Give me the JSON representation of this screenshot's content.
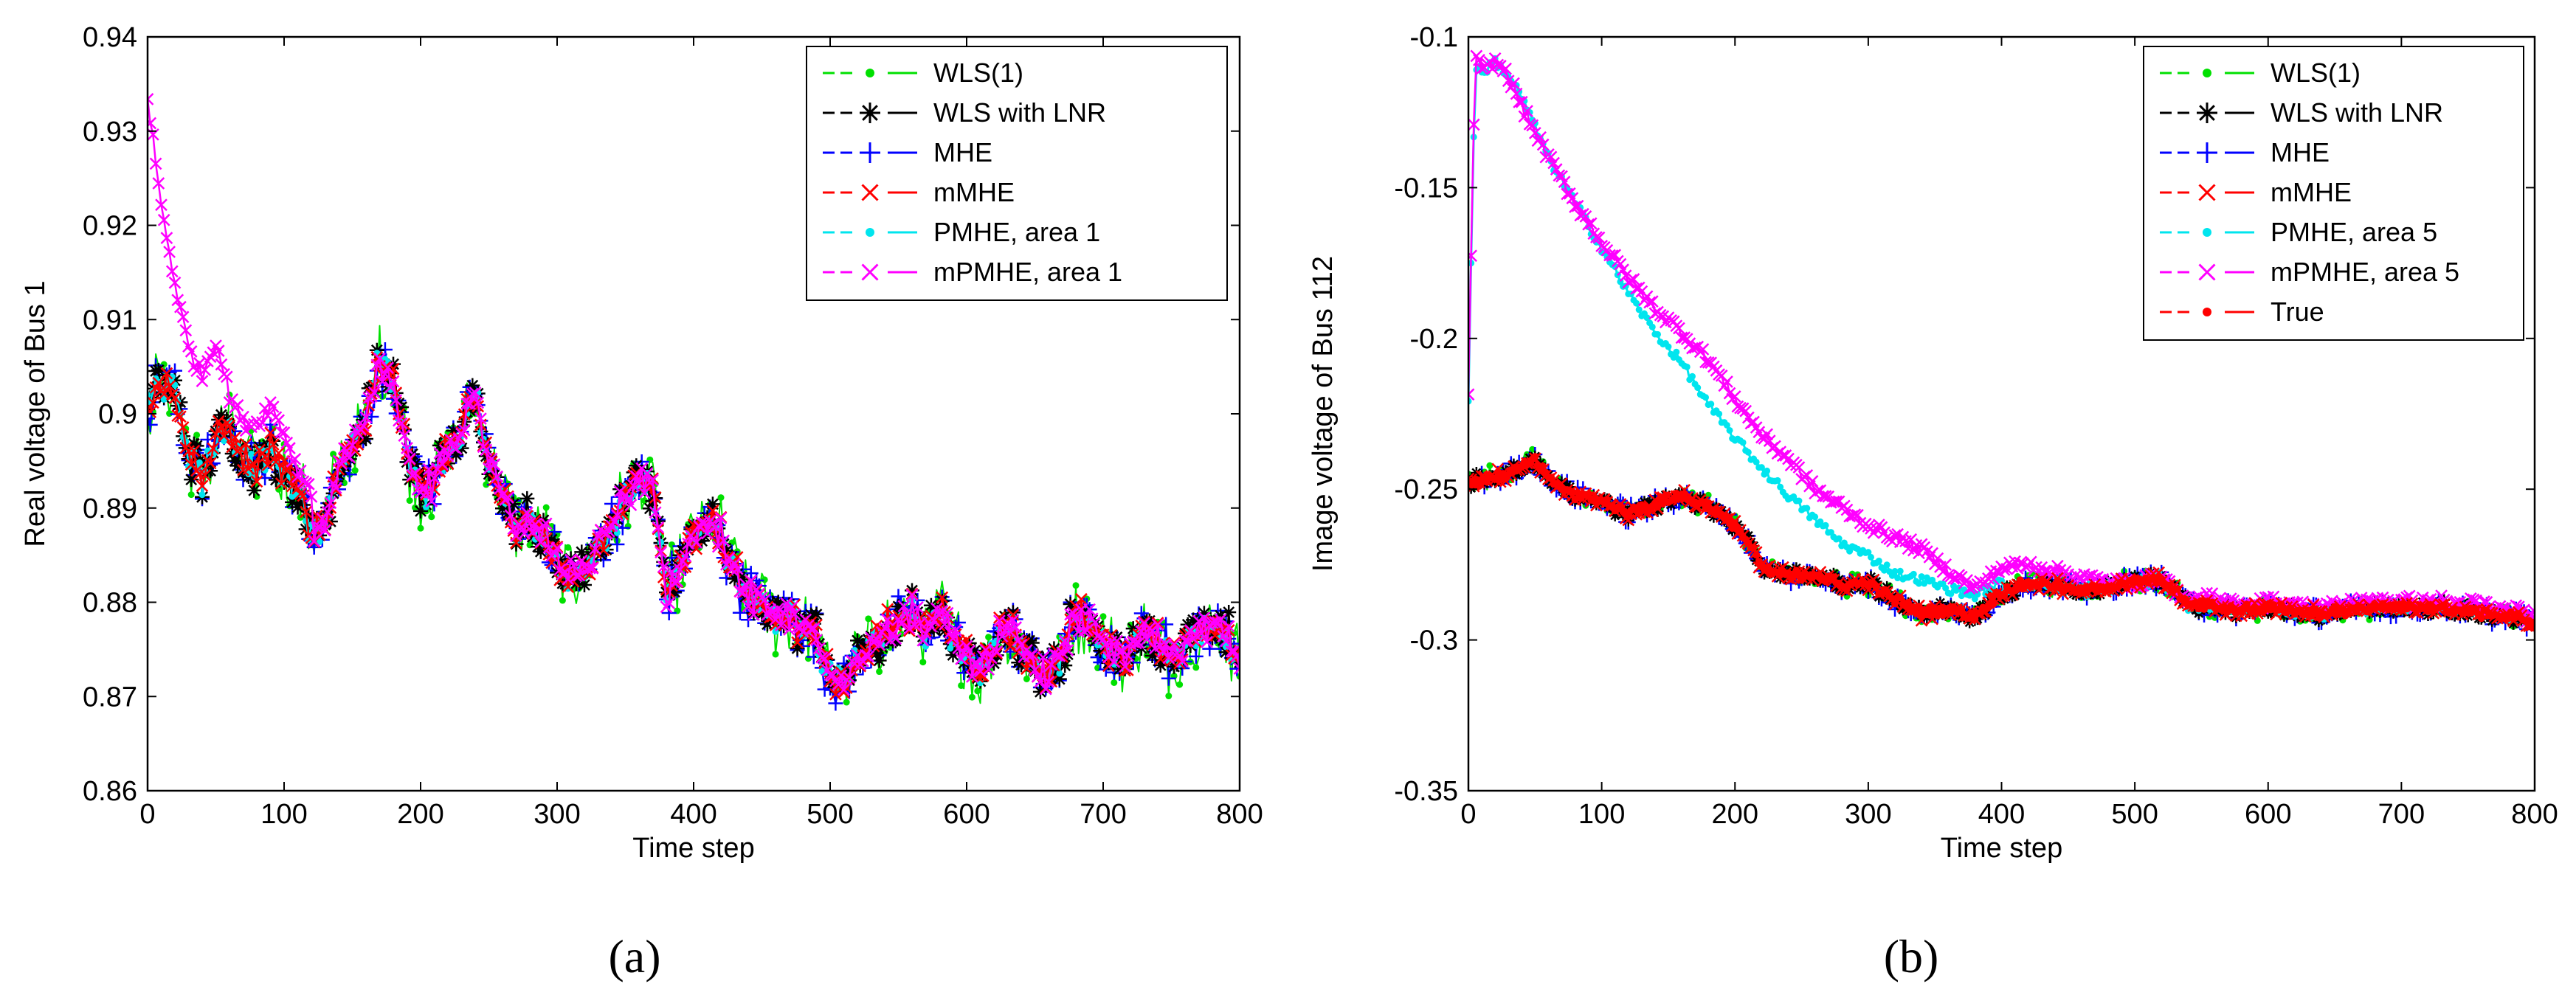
{
  "chart_data": [
    {
      "type": "line",
      "caption": "a",
      "xlabel": "Time step",
      "ylabel": "Real voltage of Bus 1",
      "xlim": [
        0,
        800
      ],
      "ylim": [
        0.86,
        0.94
      ],
      "xticks": [
        "0",
        "100",
        "200",
        "300",
        "400",
        "500",
        "600",
        "700",
        "800"
      ],
      "yticks": [
        "0.86",
        "0.87",
        "0.88",
        "0.89",
        "0.9",
        "0.91",
        "0.92",
        "0.93",
        "0.94"
      ],
      "grid": false,
      "legend_position": "top-right",
      "base_trend": {
        "x": [
          0,
          10,
          20,
          30,
          40,
          50,
          60,
          70,
          80,
          90,
          100,
          110,
          120,
          130,
          140,
          150,
          160,
          170,
          180,
          190,
          200,
          210,
          220,
          230,
          240,
          250,
          260,
          270,
          280,
          290,
          300,
          310,
          320,
          330,
          340,
          350,
          360,
          370,
          380,
          390,
          400,
          410,
          420,
          430,
          440,
          450,
          460,
          470,
          480,
          490,
          500,
          510,
          520,
          530,
          540,
          550,
          560,
          570,
          580,
          590,
          600,
          610,
          620,
          630,
          640,
          650,
          660,
          670,
          680,
          690,
          700,
          710,
          720,
          730,
          740,
          750,
          760,
          770,
          780,
          790,
          800
        ],
        "y": [
          0.901,
          0.903,
          0.902,
          0.896,
          0.893,
          0.897,
          0.899,
          0.895,
          0.894,
          0.896,
          0.894,
          0.892,
          0.888,
          0.889,
          0.894,
          0.897,
          0.899,
          0.906,
          0.903,
          0.896,
          0.891,
          0.893,
          0.896,
          0.898,
          0.902,
          0.895,
          0.891,
          0.888,
          0.889,
          0.887,
          0.884,
          0.883,
          0.884,
          0.886,
          0.888,
          0.891,
          0.893,
          0.892,
          0.881,
          0.884,
          0.887,
          0.888,
          0.887,
          0.883,
          0.881,
          0.879,
          0.878,
          0.879,
          0.877,
          0.876,
          0.872,
          0.871,
          0.874,
          0.876,
          0.877,
          0.878,
          0.879,
          0.877,
          0.879,
          0.876,
          0.874,
          0.872,
          0.876,
          0.878,
          0.874,
          0.873,
          0.872,
          0.875,
          0.879,
          0.877,
          0.876,
          0.874,
          0.875,
          0.878,
          0.876,
          0.874,
          0.876,
          0.877,
          0.878,
          0.877,
          0.873
        ]
      },
      "series": [
        {
          "name": "WLS(1)",
          "color": "#00e000",
          "marker": "dot"
        },
        {
          "name": "WLS with LNR",
          "color": "#000000",
          "marker": "star"
        },
        {
          "name": "MHE",
          "color": "#0000ff",
          "marker": "plus"
        },
        {
          "name": "mMHE",
          "color": "#ff0000",
          "marker": "x"
        },
        {
          "name": "PMHE, area 1",
          "color": "#00e5ee",
          "marker": "dot"
        },
        {
          "name": "mPMHE, area 1",
          "color": "#ff00ff",
          "marker": "x",
          "start_x": [
            0,
            5,
            10,
            20,
            30,
            40,
            50,
            60,
            70,
            80,
            90,
            100,
            110,
            120
          ],
          "start_y": [
            0.933,
            0.928,
            0.922,
            0.914,
            0.907,
            0.904,
            0.908,
            0.902,
            0.899,
            0.899,
            0.901,
            0.898,
            0.894,
            0.892
          ]
        }
      ]
    },
    {
      "type": "line",
      "caption": "b",
      "xlabel": "Time step",
      "ylabel": "Image voltage of Bus 112",
      "xlim": [
        0,
        800
      ],
      "ylim": [
        -0.35,
        -0.1
      ],
      "xticks": [
        "0",
        "100",
        "200",
        "300",
        "400",
        "500",
        "600",
        "700",
        "800"
      ],
      "yticks": [
        "-0.35",
        "-0.3",
        "-0.25",
        "-0.2",
        "-0.15",
        "-0.1"
      ],
      "grid": false,
      "legend_position": "top-right",
      "base_trend": {
        "x": [
          0,
          20,
          40,
          50,
          60,
          80,
          100,
          120,
          140,
          160,
          180,
          200,
          210,
          220,
          240,
          260,
          280,
          300,
          320,
          340,
          360,
          380,
          400,
          420,
          440,
          460,
          480,
          500,
          520,
          540,
          560,
          580,
          600,
          620,
          640,
          660,
          680,
          700,
          720,
          740,
          760,
          780,
          800
        ],
        "y": [
          -0.248,
          -0.246,
          -0.243,
          -0.24,
          -0.247,
          -0.252,
          -0.254,
          -0.258,
          -0.255,
          -0.252,
          -0.256,
          -0.262,
          -0.268,
          -0.276,
          -0.279,
          -0.278,
          -0.282,
          -0.281,
          -0.287,
          -0.291,
          -0.29,
          -0.292,
          -0.284,
          -0.281,
          -0.282,
          -0.284,
          -0.282,
          -0.281,
          -0.28,
          -0.288,
          -0.289,
          -0.29,
          -0.289,
          -0.29,
          -0.291,
          -0.29,
          -0.289,
          -0.29,
          -0.289,
          -0.29,
          -0.291,
          -0.292,
          -0.294
        ]
      },
      "pmhe_area5": {
        "x": [
          0,
          5,
          10,
          20,
          30,
          40,
          60,
          80,
          100,
          120,
          140,
          160,
          180,
          200,
          220,
          240,
          260,
          280,
          300,
          320,
          340,
          360,
          380,
          400
        ],
        "y": [
          -0.22,
          -0.11,
          -0.112,
          -0.108,
          -0.113,
          -0.12,
          -0.14,
          -0.155,
          -0.17,
          -0.185,
          -0.198,
          -0.208,
          -0.222,
          -0.233,
          -0.243,
          -0.252,
          -0.26,
          -0.268,
          -0.272,
          -0.278,
          -0.28,
          -0.283,
          -0.285,
          -0.281
        ]
      },
      "mpmhe_area5": {
        "x": [
          0,
          5,
          10,
          20,
          30,
          40,
          60,
          80,
          100,
          120,
          140,
          160,
          180,
          200,
          220,
          240,
          260,
          280,
          300,
          320,
          340,
          360,
          380,
          400,
          420,
          440,
          460,
          480,
          500,
          520,
          540
        ],
        "y": [
          -0.22,
          -0.105,
          -0.112,
          -0.108,
          -0.113,
          -0.123,
          -0.14,
          -0.155,
          -0.168,
          -0.18,
          -0.19,
          -0.198,
          -0.207,
          -0.22,
          -0.232,
          -0.24,
          -0.25,
          -0.256,
          -0.262,
          -0.266,
          -0.27,
          -0.277,
          -0.283,
          -0.276,
          -0.275,
          -0.277,
          -0.279,
          -0.281,
          -0.281,
          -0.279,
          -0.288
        ]
      },
      "series": [
        {
          "name": "WLS(1)",
          "color": "#00e000",
          "marker": "dot"
        },
        {
          "name": "WLS with LNR",
          "color": "#000000",
          "marker": "star"
        },
        {
          "name": "MHE",
          "color": "#0000ff",
          "marker": "plus"
        },
        {
          "name": "mMHE",
          "color": "#ff0000",
          "marker": "x"
        },
        {
          "name": "PMHE, area 5",
          "color": "#00e5ee",
          "marker": "dot"
        },
        {
          "name": "mPMHE, area 5",
          "color": "#ff00ff",
          "marker": "x"
        },
        {
          "name": "True",
          "color": "#ff0000",
          "marker": "dot"
        }
      ]
    }
  ],
  "captions": {
    "a_label": "(a)",
    "b_label": "(b)"
  }
}
